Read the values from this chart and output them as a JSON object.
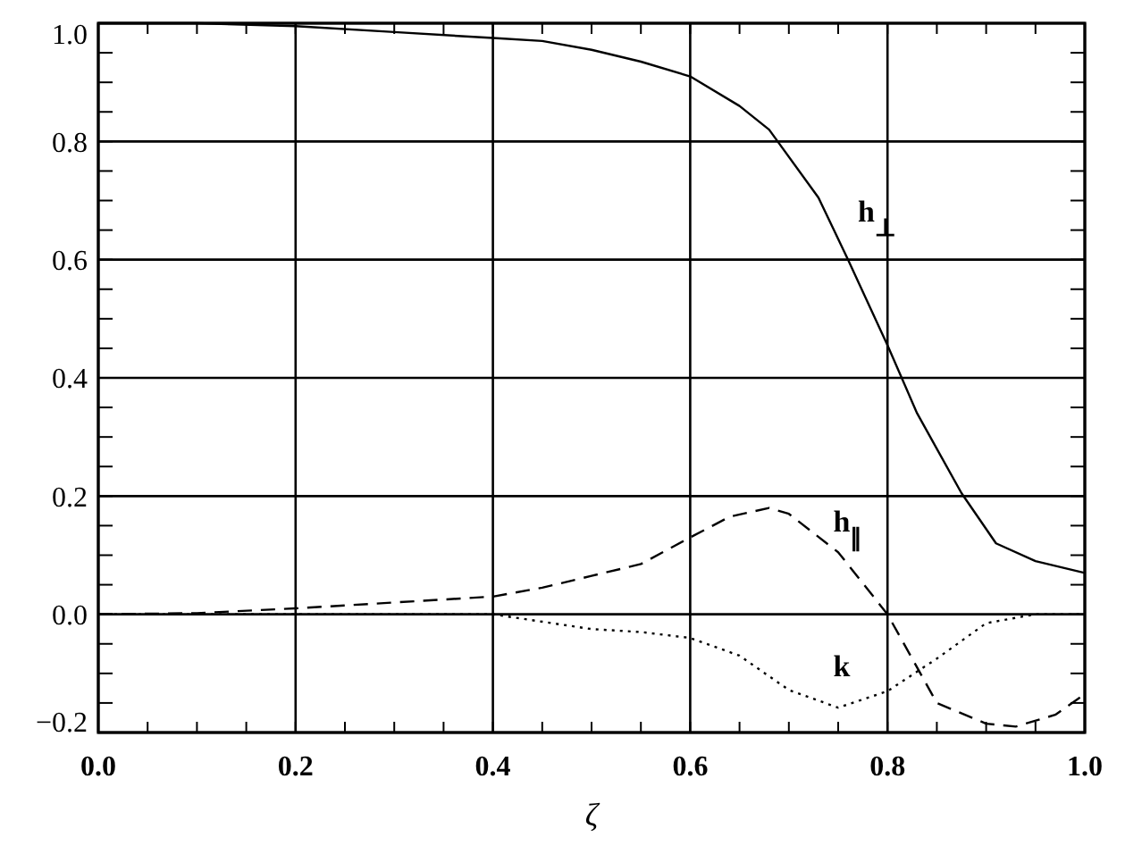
{
  "chart_data": {
    "type": "line",
    "xlabel": "ζ",
    "xlim": [
      0,
      1
    ],
    "ylim": [
      -0.2,
      1.0
    ],
    "xticks": [
      {
        "value": 0,
        "label": "0.0"
      },
      0.2,
      0.4,
      0.6,
      0.8,
      {
        "value": 1,
        "label": "1.0"
      }
    ],
    "yticks": [
      {
        "value": -0.2,
        "label": "−0.2"
      },
      {
        "value": 0,
        "label": "0.0"
      },
      0.2,
      0.4,
      0.6,
      0.8,
      {
        "value": 1,
        "label": "1.0"
      }
    ],
    "grid": true,
    "series": [
      {
        "name": "h$_{⊥}$",
        "color": "#000000",
        "line_style": "solid",
        "x": [
          0,
          0.1,
          0.2,
          0.3,
          0.4,
          0.45,
          0.5,
          0.55,
          0.6,
          0.65,
          0.68,
          0.73,
          0.76,
          0.8,
          0.83,
          0.875,
          0.91,
          0.95,
          1.0
        ],
        "values": [
          1.0,
          1.0,
          0.995,
          0.985,
          0.975,
          0.97,
          0.955,
          0.935,
          0.91,
          0.86,
          0.82,
          0.705,
          0.6,
          0.455,
          0.34,
          0.205,
          0.12,
          0.09,
          0.07
        ]
      },
      {
        "name": "h$_{∥}$",
        "color": "#000000",
        "line_style": "dashed",
        "x": [
          0,
          0.1,
          0.2,
          0.3,
          0.4,
          0.45,
          0.5,
          0.55,
          0.6,
          0.64,
          0.68,
          0.7,
          0.75,
          0.8,
          0.85,
          0.9,
          0.93,
          0.97,
          1.0
        ],
        "values": [
          0,
          0.002,
          0.01,
          0.02,
          0.03,
          0.045,
          0.065,
          0.085,
          0.13,
          0.165,
          0.18,
          0.17,
          0.105,
          0.0,
          -0.15,
          -0.185,
          -0.19,
          -0.17,
          -0.135
        ]
      },
      {
        "name": "k",
        "color": "#000000",
        "line_style": "dotted",
        "x": [
          0,
          0.4,
          0.5,
          0.55,
          0.6,
          0.65,
          0.7,
          0.75,
          0.8,
          0.85,
          0.9,
          0.95,
          1.0
        ],
        "values": [
          0,
          0,
          -0.025,
          -0.03,
          -0.04,
          -0.07,
          -0.128,
          -0.158,
          -0.13,
          -0.075,
          -0.015,
          0,
          0
        ]
      }
    ]
  }
}
